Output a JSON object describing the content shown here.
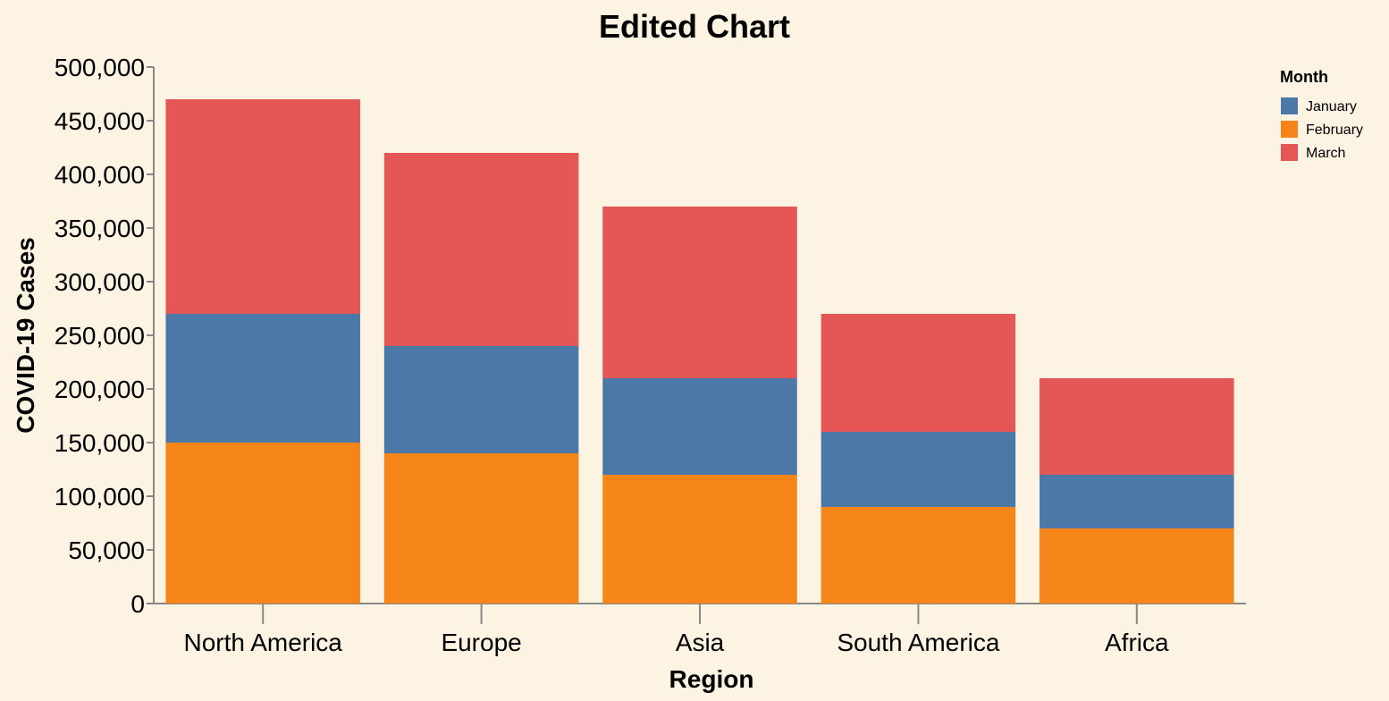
{
  "chart_data": {
    "type": "bar",
    "stacked": true,
    "title": "Edited Chart",
    "xlabel": "Region",
    "ylabel": "COVID-19 Cases",
    "categories": [
      "North America",
      "Europe",
      "Asia",
      "South America",
      "Africa"
    ],
    "stack_order": [
      "February",
      "January",
      "March"
    ],
    "series": [
      {
        "name": "January",
        "color": "#4c78a8",
        "values": [
          120000,
          100000,
          90000,
          70000,
          50000
        ]
      },
      {
        "name": "February",
        "color": "#f58518",
        "values": [
          150000,
          140000,
          120000,
          90000,
          70000
        ]
      },
      {
        "name": "March",
        "color": "#e45756",
        "values": [
          200000,
          180000,
          160000,
          110000,
          90000
        ]
      }
    ],
    "ylim": [
      0,
      500000
    ],
    "yticks": [
      "0",
      "50,000",
      "100,000",
      "150,000",
      "200,000",
      "250,000",
      "300,000",
      "350,000",
      "400,000",
      "450,000",
      "500,000"
    ],
    "grid": false,
    "legend": {
      "title": "Month",
      "position": "top-right",
      "entries": [
        "January",
        "February",
        "March"
      ]
    }
  }
}
